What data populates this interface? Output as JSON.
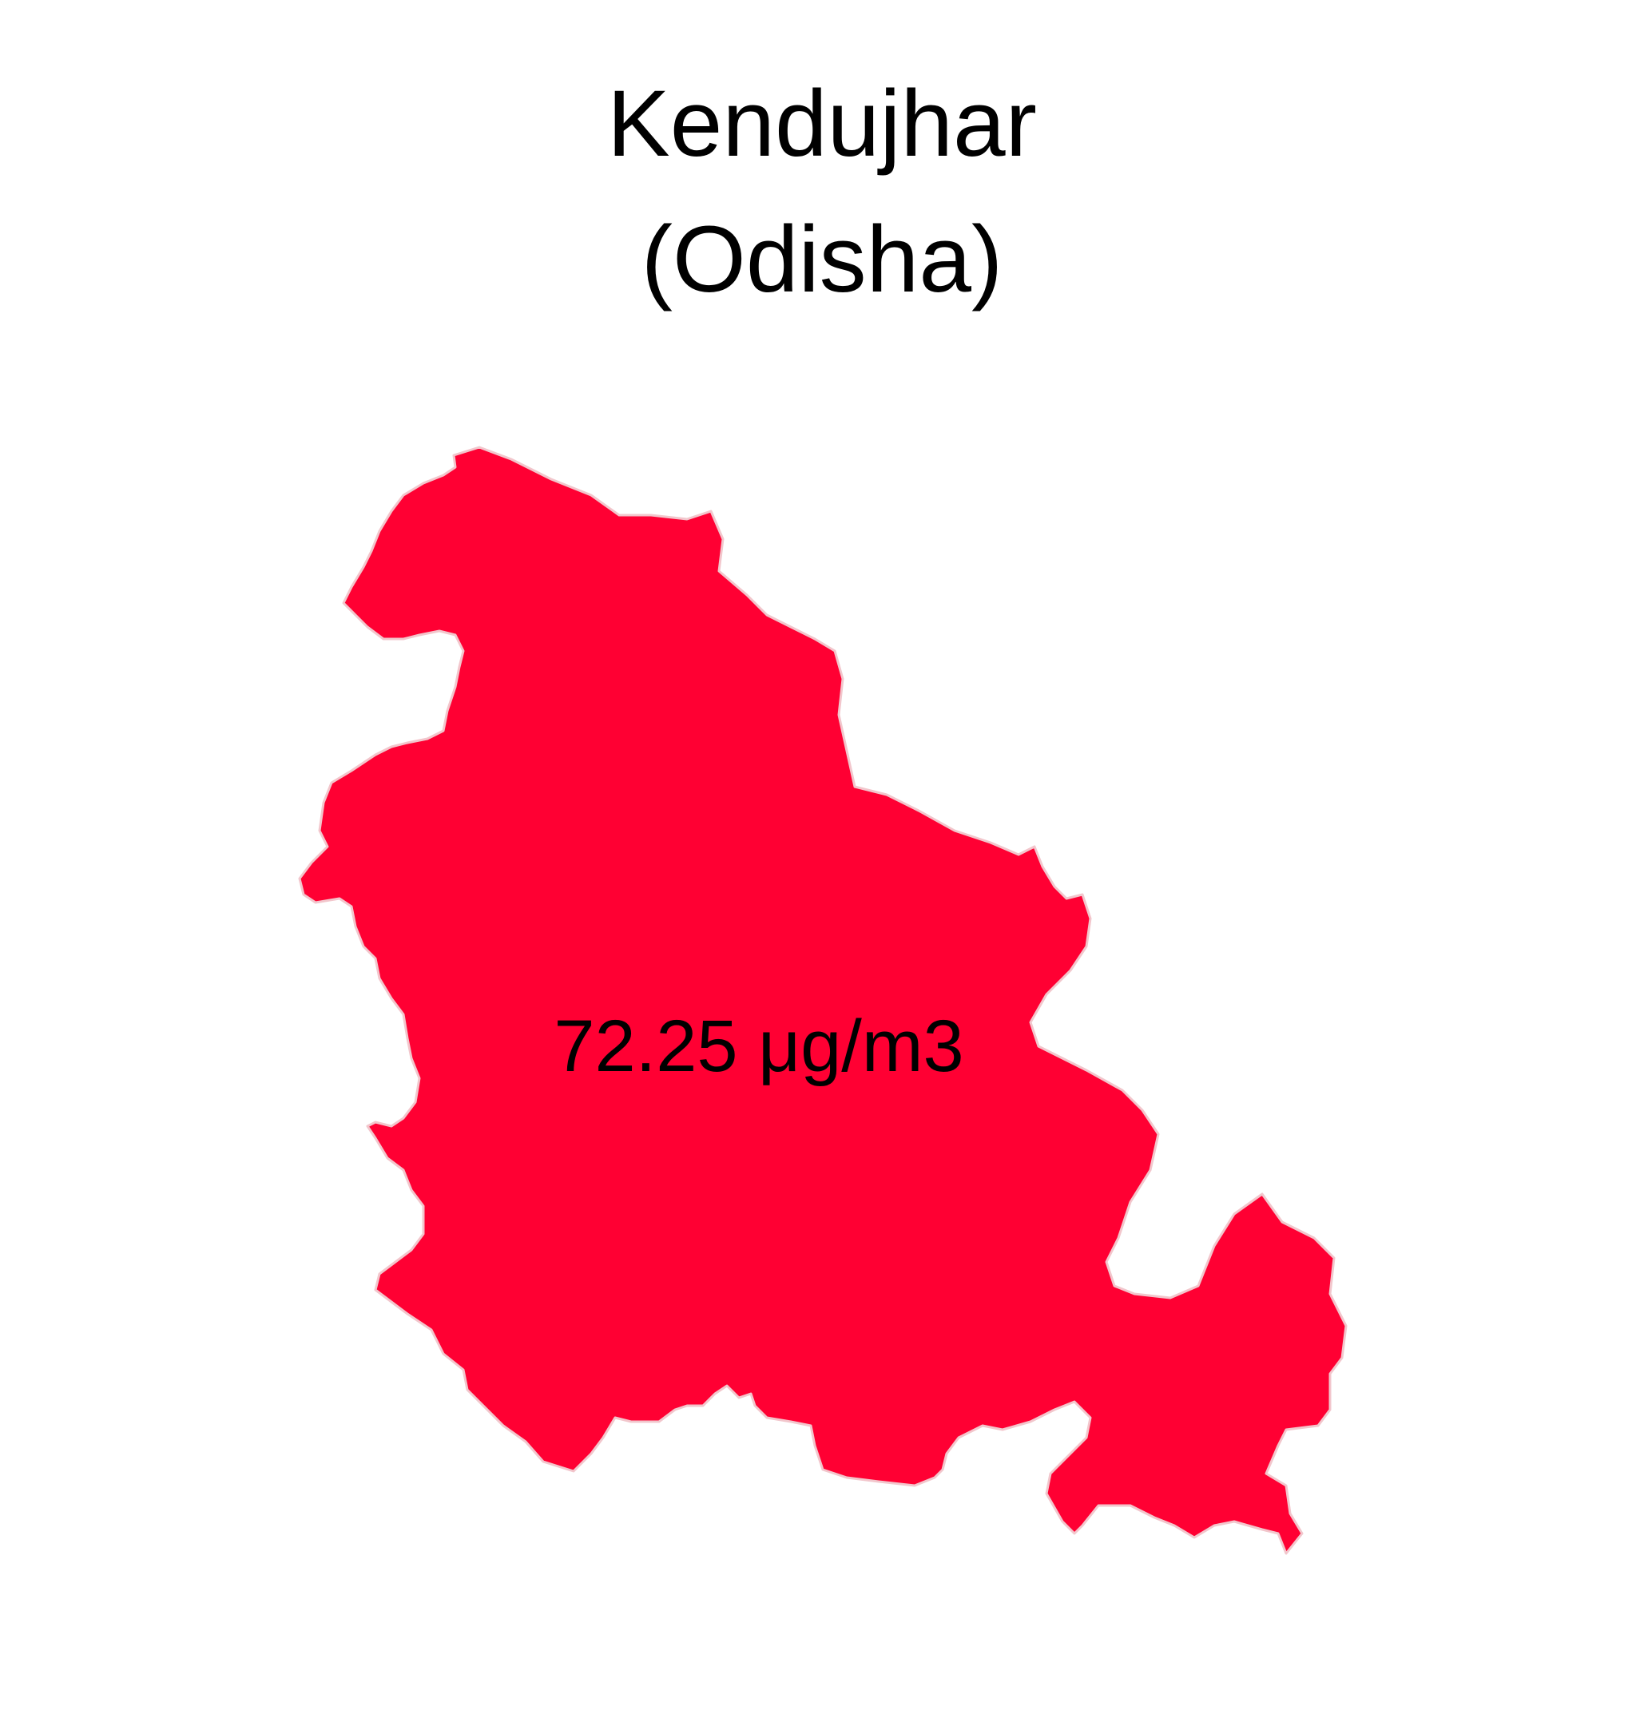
{
  "map": {
    "title_line1": "Kendujhar",
    "title_line2": "(Odisha)",
    "value_label": "72.25 μg/m3",
    "value": 72.25,
    "unit": "μg/m3",
    "fill_color": "#ff0033",
    "border_color": "#f2c6cc",
    "background_color": "#ffffff"
  }
}
